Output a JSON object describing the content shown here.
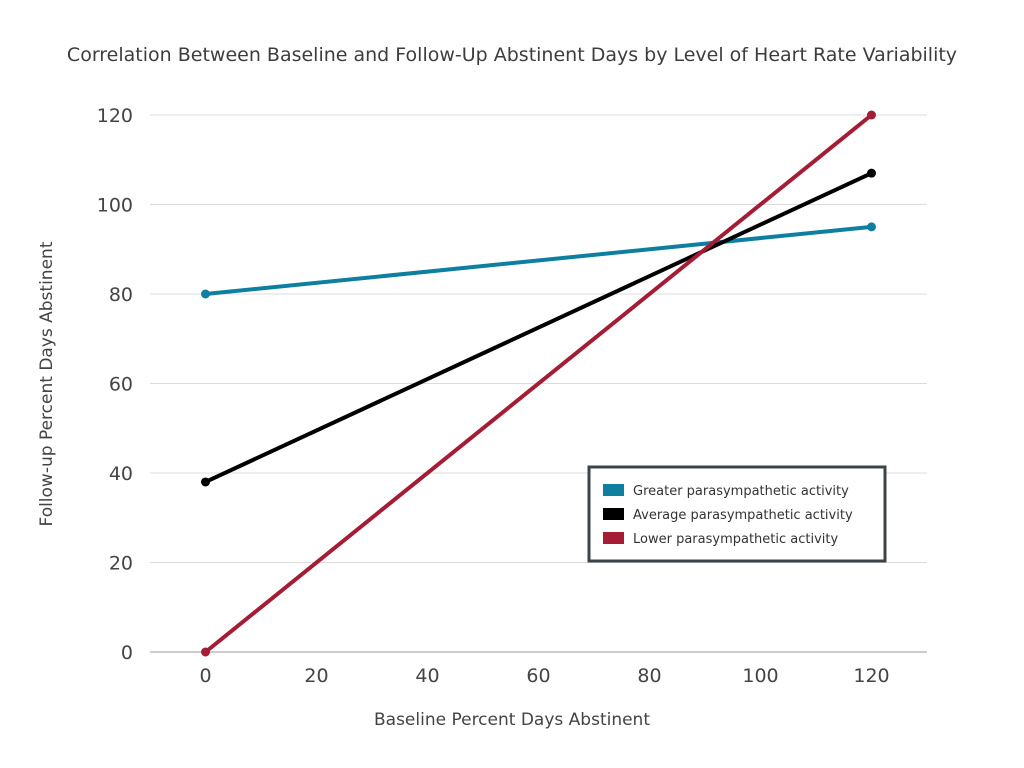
{
  "chart_data": {
    "type": "line",
    "title": "Correlation Between Baseline and Follow-Up Abstinent Days by Level of Heart Rate Variability",
    "xlabel": "Baseline Percent Days Abstinent",
    "ylabel": "Follow-up Percent Days Abstinent",
    "xlim": [
      -10,
      130
    ],
    "ylim": [
      0,
      120
    ],
    "x_ticks": [
      0,
      20,
      40,
      60,
      80,
      100,
      120
    ],
    "y_ticks": [
      0,
      20,
      40,
      60,
      80,
      100,
      120
    ],
    "grid": true,
    "legend_position": "lower-right",
    "series": [
      {
        "name": "Greater parasympathetic activity",
        "color": "#0e7f9e",
        "x": [
          0,
          120
        ],
        "y": [
          80,
          95
        ]
      },
      {
        "name": "Average parasympathetic activity",
        "color": "#000000",
        "x": [
          0,
          120
        ],
        "y": [
          38,
          107
        ]
      },
      {
        "name": "Lower parasympathetic activity",
        "color": "#a51c35",
        "x": [
          0,
          120
        ],
        "y": [
          0,
          120
        ]
      }
    ]
  }
}
